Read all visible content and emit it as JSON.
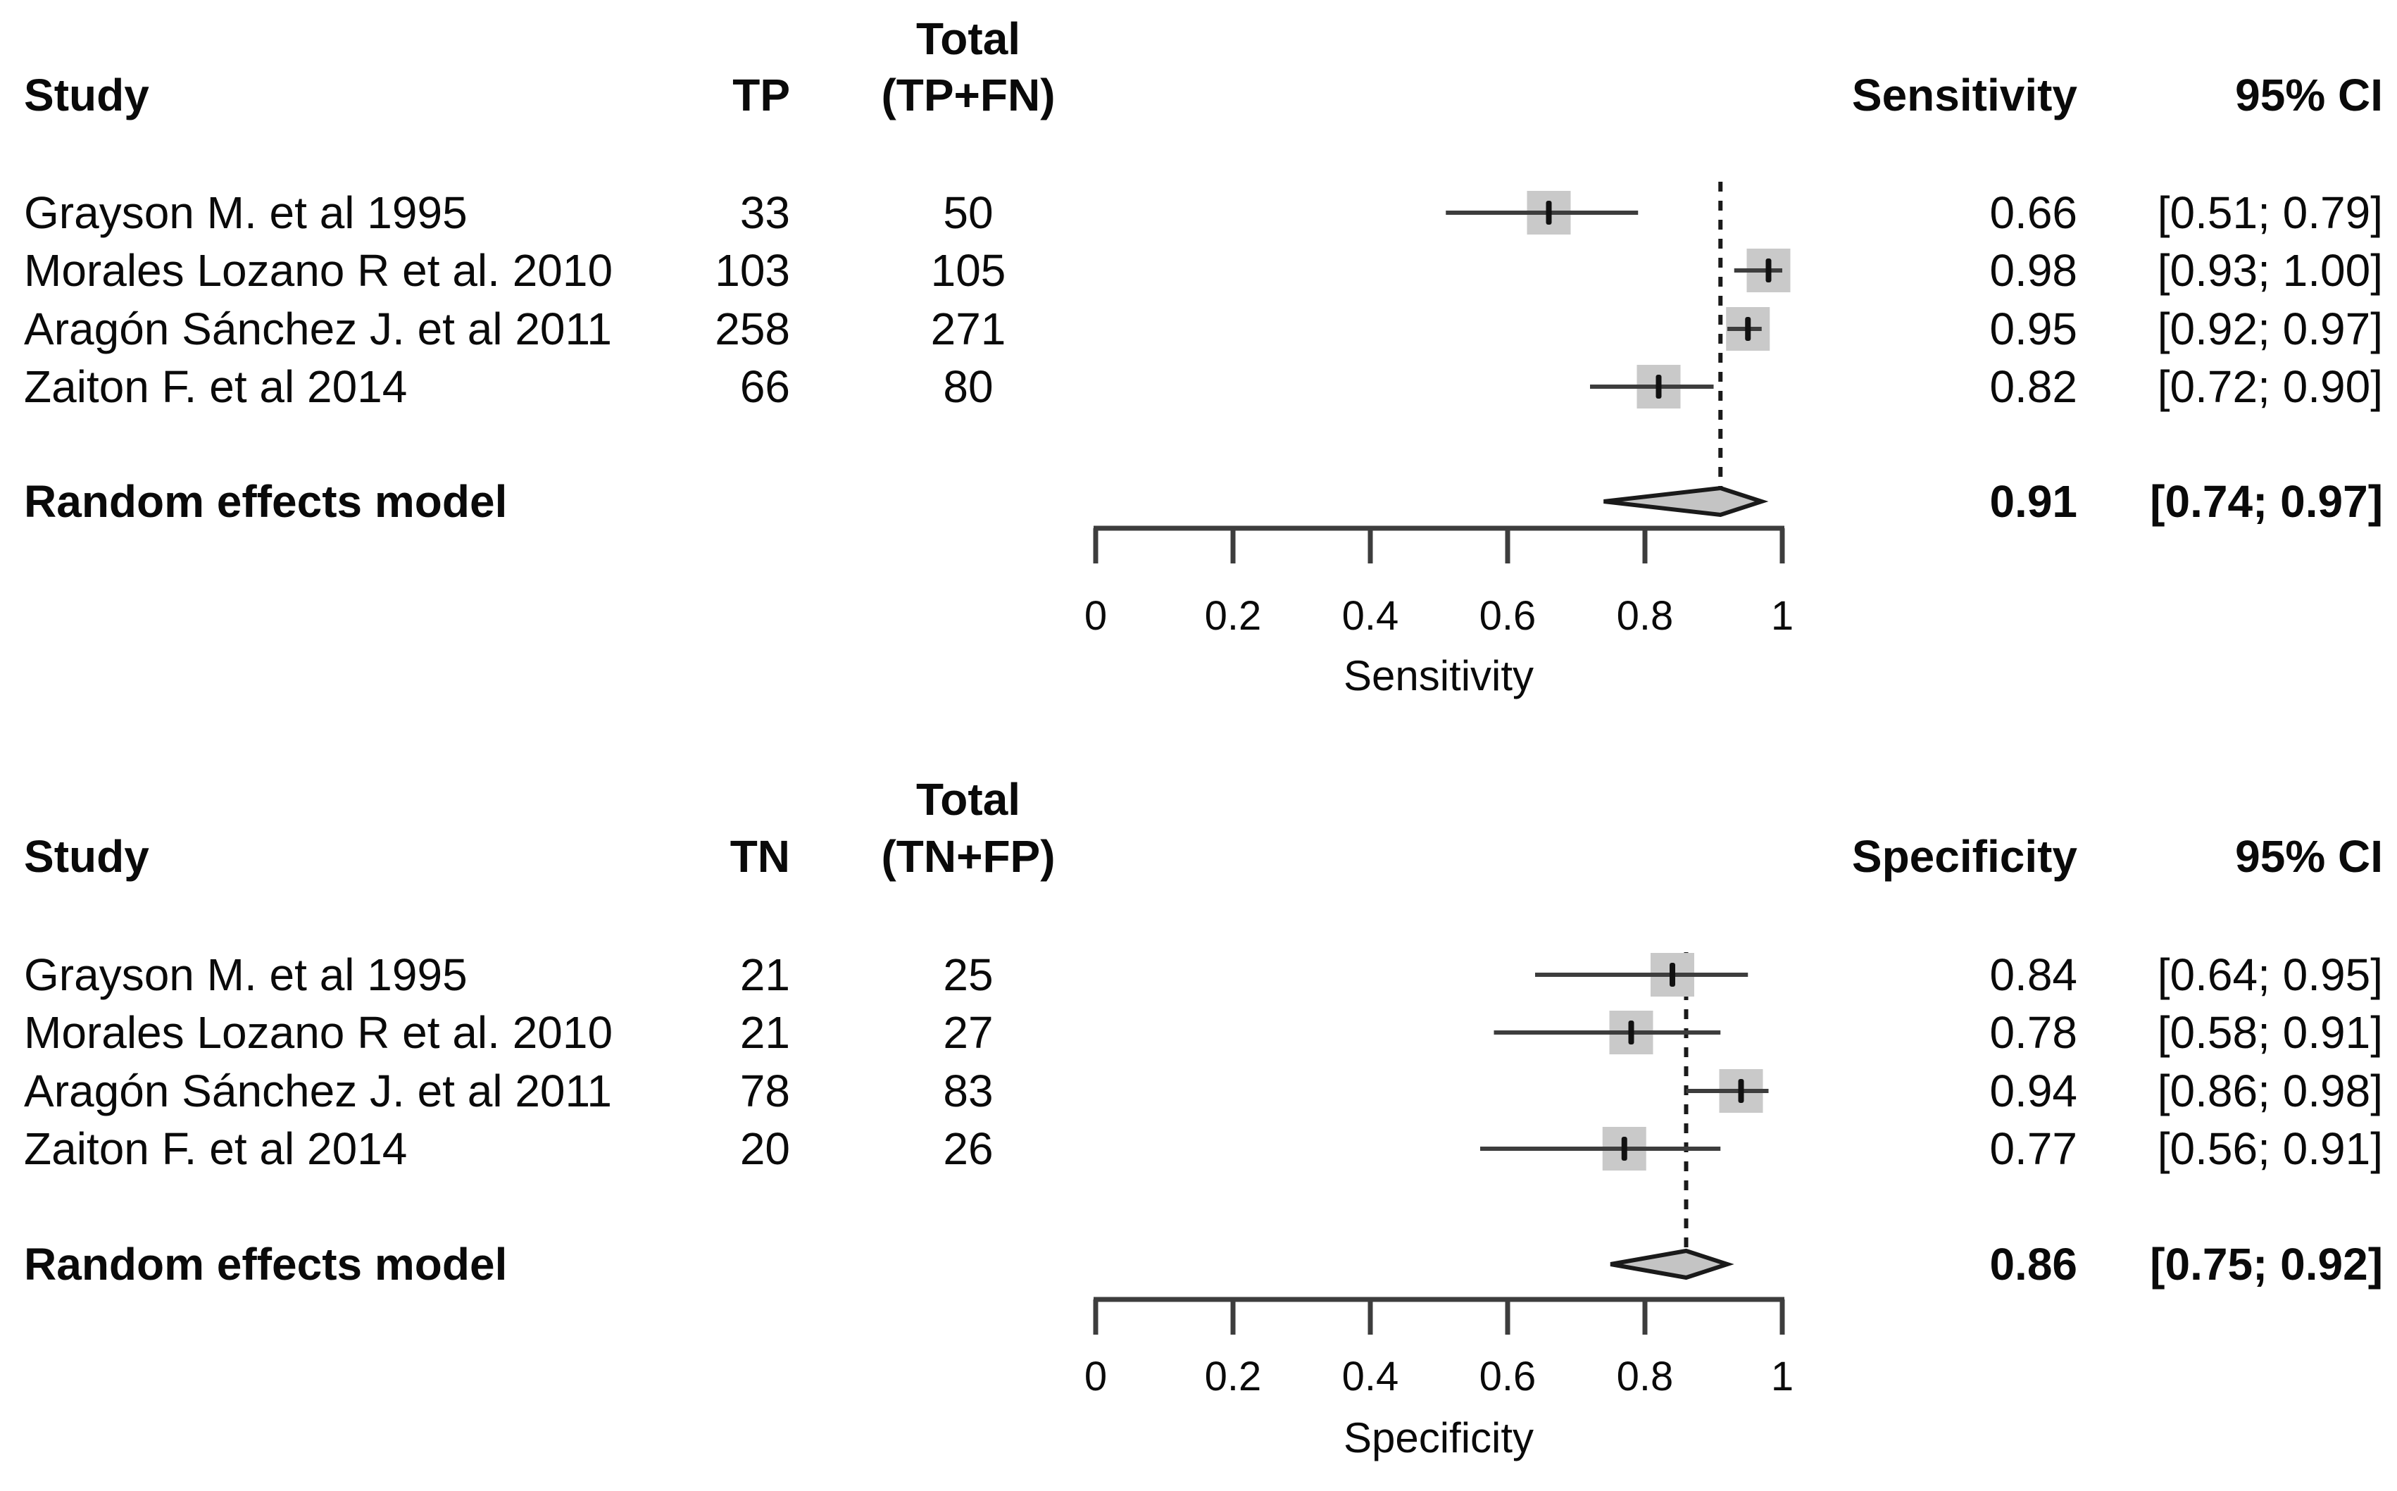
{
  "colors": {
    "background": "#ffffff",
    "text": "#0a0a0a",
    "square": "#c9c9c9",
    "ci_line": "#3d3d3d",
    "estimate_tick": "#111111",
    "diamond_fill": "#c4c4c4",
    "diamond_border": "#1a1a1a",
    "axis": "#3d3d3d",
    "dashed_line": "#1a1a1a"
  },
  "chart_data": [
    {
      "type": "forest",
      "xlabel": "Sensitivity",
      "xlim": [
        0,
        1
      ],
      "x_ticks": [
        0,
        0.2,
        0.4,
        0.6,
        0.8,
        1
      ],
      "x_tick_labels": [
        "0",
        "0.2",
        "0.4",
        "0.6",
        "0.8",
        "1"
      ],
      "grid": false,
      "columns": {
        "study": "Study",
        "count": "TP",
        "total_line1": "Total",
        "total_line2": "(TP+FN)",
        "measure": "Sensitivity",
        "ci": "95% CI"
      },
      "studies": [
        {
          "name": "Grayson M. et al 1995",
          "count": "33",
          "total": "50",
          "estimate": 0.66,
          "ci_low": 0.51,
          "ci_high": 0.79,
          "estimate_label": "0.66",
          "ci_label": "[0.51; 0.79]"
        },
        {
          "name": "Morales Lozano R et al. 2010",
          "count": "103",
          "total": "105",
          "estimate": 0.98,
          "ci_low": 0.93,
          "ci_high": 1.0,
          "estimate_label": "0.98",
          "ci_label": "[0.93; 1.00]"
        },
        {
          "name": "Aragón Sánchez J. et al 2011",
          "count": "258",
          "total": "271",
          "estimate": 0.95,
          "ci_low": 0.92,
          "ci_high": 0.97,
          "estimate_label": "0.95",
          "ci_label": "[0.92; 0.97]"
        },
        {
          "name": "Zaiton F. et al 2014",
          "count": "66",
          "total": "80",
          "estimate": 0.82,
          "ci_low": 0.72,
          "ci_high": 0.9,
          "estimate_label": "0.82",
          "ci_label": "[0.72; 0.90]"
        }
      ],
      "summary": {
        "label": "Random effects model",
        "estimate": 0.91,
        "ci_low": 0.74,
        "ci_high": 0.97,
        "estimate_label": "0.91",
        "ci_label": "[0.74; 0.97]"
      }
    },
    {
      "type": "forest",
      "xlabel": "Specificity",
      "xlim": [
        0,
        1
      ],
      "x_ticks": [
        0,
        0.2,
        0.4,
        0.6,
        0.8,
        1
      ],
      "x_tick_labels": [
        "0",
        "0.2",
        "0.4",
        "0.6",
        "0.8",
        "1"
      ],
      "grid": false,
      "columns": {
        "study": "Study",
        "count": "TN",
        "total_line1": "Total",
        "total_line2": "(TN+FP)",
        "measure": "Specificity",
        "ci": "95% CI"
      },
      "studies": [
        {
          "name": "Grayson M. et al 1995",
          "count": "21",
          "total": "25",
          "estimate": 0.84,
          "ci_low": 0.64,
          "ci_high": 0.95,
          "estimate_label": "0.84",
          "ci_label": "[0.64; 0.95]"
        },
        {
          "name": "Morales Lozano R et al. 2010",
          "count": "21",
          "total": "27",
          "estimate": 0.78,
          "ci_low": 0.58,
          "ci_high": 0.91,
          "estimate_label": "0.78",
          "ci_label": "[0.58; 0.91]"
        },
        {
          "name": "Aragón Sánchez J. et al 2011",
          "count": "78",
          "total": "83",
          "estimate": 0.94,
          "ci_low": 0.86,
          "ci_high": 0.98,
          "estimate_label": "0.94",
          "ci_label": "[0.86; 0.98]"
        },
        {
          "name": "Zaiton F. et al 2014",
          "count": "20",
          "total": "26",
          "estimate": 0.77,
          "ci_low": 0.56,
          "ci_high": 0.91,
          "estimate_label": "0.77",
          "ci_label": "[0.56; 0.91]"
        }
      ],
      "summary": {
        "label": "Random effects model",
        "estimate": 0.86,
        "ci_low": 0.75,
        "ci_high": 0.92,
        "estimate_label": "0.86",
        "ci_label": "[0.75; 0.92]"
      }
    }
  ]
}
